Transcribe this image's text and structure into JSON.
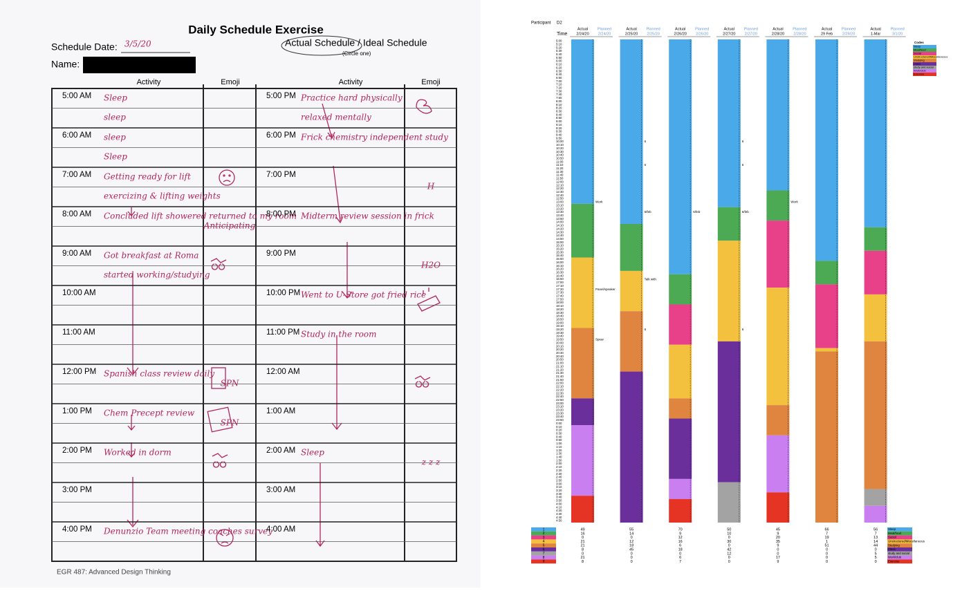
{
  "form": {
    "title": "Daily Schedule Exercise",
    "date_label": "Schedule Date:",
    "date_value": "3/5/20",
    "schedule_type": "Actual Schedule / Ideal Schedule",
    "circle_note": "(Circle one)",
    "name_label": "Name:",
    "headers": [
      "Activity",
      "Emoji",
      "Activity",
      "Emoji"
    ],
    "left": [
      {
        "time": "5:00 AM",
        "lines": [
          "Sleep",
          "sleep"
        ]
      },
      {
        "time": "6:00 AM",
        "lines": [
          "sleep",
          "Sleep"
        ]
      },
      {
        "time": "7:00 AM",
        "lines": [
          "Getting ready for lift",
          "exercizing & lifting weights"
        ]
      },
      {
        "time": "8:00 AM",
        "lines": [
          "Concluded lift showered returned to my room"
        ],
        "emoji": "Anticipating"
      },
      {
        "time": "9:00 AM",
        "lines": [
          "Got breakfast at Roma",
          "started working/studying"
        ]
      },
      {
        "time": "10:00 AM",
        "lines": []
      },
      {
        "time": "11:00 AM",
        "lines": []
      },
      {
        "time": "12:00 PM",
        "lines": [
          "Spanish class review daily"
        ],
        "emoji": "SPN"
      },
      {
        "time": "1:00 PM",
        "lines": [
          "Chem Precept review"
        ],
        "emoji": "SPN"
      },
      {
        "time": "2:00 PM",
        "lines": [
          "Worked in dorm"
        ]
      },
      {
        "time": "3:00 PM",
        "lines": []
      },
      {
        "time": "4:00 PM",
        "lines": [
          "Denunzio Team meeting coaches survey"
        ]
      }
    ],
    "right": [
      {
        "time": "5:00 PM",
        "lines": [
          "Practice hard physically",
          "relaxed mentally"
        ]
      },
      {
        "time": "6:00 PM",
        "lines": [
          "Frick chemistry independent study"
        ]
      },
      {
        "time": "7:00 PM",
        "lines": [],
        "emoji": "H"
      },
      {
        "time": "8:00 PM",
        "lines": [
          "Midterm review session in frick"
        ]
      },
      {
        "time": "9:00 PM",
        "lines": [],
        "emoji": "H2O"
      },
      {
        "time": "10:00 PM",
        "lines": [
          "Went to U-Store got fried rice"
        ]
      },
      {
        "time": "11:00 PM",
        "lines": [
          "Study in the room"
        ]
      },
      {
        "time": "12:00 AM",
        "lines": []
      },
      {
        "time": "1:00 AM",
        "lines": []
      },
      {
        "time": "2:00 AM",
        "lines": [
          "Sleep"
        ],
        "emoji": "z z z"
      },
      {
        "time": "3:00 AM",
        "lines": []
      },
      {
        "time": "4:00 AM",
        "lines": []
      }
    ],
    "footer": "EGR 487: Advanced Design Thinking"
  },
  "sheet": {
    "participant_label": "Participant",
    "participant": "D2",
    "time_label": "Time",
    "codes_title": "Codes",
    "codes": [
      {
        "num": "1",
        "name": "Sleep",
        "color": "#4aa9e9"
      },
      {
        "num": "2",
        "name": "Meal/food",
        "color": "#4caa55"
      },
      {
        "num": "3",
        "name": "Social",
        "color": "#e8418a"
      },
      {
        "num": "4",
        "name": "Unstructured/Miscellaneous",
        "color": "#f4c13f"
      },
      {
        "num": "5",
        "name": "Studying",
        "color": "#df8540"
      },
      {
        "num": "6",
        "name": "Class",
        "color": "#6a2f9b"
      },
      {
        "num": "7",
        "name": "study and social",
        "color": "#a3a3a3"
      },
      {
        "num": "8",
        "name": "Work/club",
        "color": "#c97ff0"
      },
      {
        "num": "9",
        "name": "Exercise",
        "color": "#e63424"
      }
    ],
    "times": [
      "5:00",
      "5:10",
      "5:20",
      "5:30",
      "5:40",
      "5:50",
      "6:00",
      "6:10",
      "6:20",
      "6:30",
      "6:40",
      "6:50",
      "7:00",
      "7:10",
      "7:20",
      "7:30",
      "7:40",
      "7:50",
      "8:00",
      "8:10",
      "8:20",
      "8:30",
      "8:40",
      "8:50",
      "9:00",
      "9:10",
      "9:20",
      "9:30",
      "9:40",
      "9:50",
      "10:00",
      "10:10",
      "10:20",
      "10:30",
      "10:40",
      "10:50",
      "11:00",
      "11:10",
      "11:20",
      "11:30",
      "11:40",
      "11:50",
      "12:00",
      "12:10",
      "12:20",
      "12:30",
      "12:40",
      "12:50",
      "13:00",
      "13:10",
      "13:20",
      "13:30",
      "13:40",
      "13:50",
      "14:00",
      "14:10",
      "14:20",
      "14:30",
      "14:40",
      "14:50",
      "15:00",
      "15:10",
      "15:20",
      "15:30",
      "15:40",
      "15:50",
      "16:00",
      "16:10",
      "16:20",
      "16:30",
      "16:40",
      "16:50",
      "17:00",
      "17:10",
      "17:20",
      "17:30",
      "17:40",
      "17:50",
      "18:00",
      "18:10",
      "18:20",
      "18:30",
      "18:40",
      "18:50",
      "19:00",
      "19:10",
      "19:20",
      "19:30",
      "19:40",
      "19:50",
      "20:00",
      "20:10",
      "20:20",
      "20:30",
      "20:40",
      "20:50",
      "21:00",
      "21:10",
      "21:20",
      "21:30",
      "21:40",
      "21:50",
      "22:00",
      "22:10",
      "22:20",
      "22:30",
      "22:40",
      "22:50",
      "23:00",
      "23:10",
      "23:20",
      "23:30",
      "23:40",
      "23:50",
      "0:00",
      "0:10",
      "0:20",
      "0:30",
      "0:40",
      "0:50",
      "1:00",
      "1:10",
      "1:20",
      "1:30",
      "1:40",
      "1:50",
      "2:00",
      "2:10",
      "2:20",
      "2:30",
      "2:40",
      "2:50",
      "3:00",
      "3:10",
      "3:20",
      "3:30",
      "3:40",
      "3:50",
      "4:00",
      "4:10",
      "4:20",
      "4:30",
      "4:40",
      "4:50"
    ],
    "days": [
      {
        "actual": "Actual",
        "date": "2/24/20",
        "planned": "Planned",
        "planned_date": "2/24/20",
        "counts": [
          49,
          16,
          0,
          21,
          21,
          8,
          0,
          21,
          8
        ],
        "order": [
          0,
          1,
          3,
          4,
          5,
          7,
          8
        ],
        "notes": [
          {
            "text": "Work",
            "time": "13:00"
          },
          {
            "text": "Panel/speaker",
            "time": "17:20"
          },
          {
            "text": "Spear",
            "time": "19:50"
          }
        ]
      },
      {
        "actual": "Actual",
        "date": "2/25/20",
        "planned": "Planned",
        "planned_date": "2/25/20",
        "counts": [
          55,
          14,
          0,
          12,
          18,
          45,
          0,
          0,
          0
        ],
        "order": [
          0,
          1,
          3,
          4,
          5
        ],
        "notes": [
          {
            "text": "6/feb",
            "time": "13:30"
          },
          {
            "text": "Talk with",
            "time": "16:50"
          },
          {
            "text": "6",
            "time": "10:00"
          },
          {
            "text": "6",
            "time": "11:10"
          },
          {
            "text": "6",
            "time": "19:20"
          }
        ]
      },
      {
        "actual": "Actual",
        "date": "2/26/20",
        "planned": "Planned",
        "planned_date": "2/26/20",
        "counts": [
          70,
          9,
          12,
          16,
          6,
          18,
          0,
          6,
          7
        ],
        "order": [
          0,
          1,
          2,
          3,
          4,
          5,
          7,
          8
        ],
        "notes": [
          {
            "text": "6/feb",
            "time": "13:30"
          }
        ]
      },
      {
        "actual": "Actual",
        "date": "2/27/20",
        "planned": "Planned",
        "planned_date": "2/27/20",
        "counts": [
          50,
          10,
          0,
          30,
          0,
          42,
          12,
          0,
          0
        ],
        "order": [
          0,
          1,
          3,
          5,
          6
        ],
        "notes": [
          {
            "text": "6/feb",
            "time": "13:30"
          },
          {
            "text": "6",
            "time": "10:00"
          },
          {
            "text": "6",
            "time": "11:10"
          },
          {
            "text": "6",
            "time": "19:20"
          }
        ]
      },
      {
        "actual": "Actual",
        "date": "2/28/20",
        "planned": "Planned",
        "planned_date": "2/28/20",
        "counts": [
          45,
          9,
          20,
          35,
          9,
          0,
          0,
          17,
          9
        ],
        "order": [
          0,
          1,
          2,
          3,
          4,
          7,
          8
        ],
        "notes": [
          {
            "text": "Work",
            "time": "13:00"
          }
        ]
      },
      {
        "actual": "Actual",
        "date": "29 Feb",
        "planned": "Planned",
        "planned_date": "2/29/20",
        "counts": [
          66,
          7,
          19,
          1,
          51,
          0,
          0,
          0,
          0
        ],
        "order": [
          0,
          1,
          2,
          3,
          4
        ],
        "notes": []
      },
      {
        "actual": "Actual",
        "date": "1-Mar",
        "planned": "Planned",
        "planned_date": "3/1/20",
        "counts": [
          56,
          7,
          13,
          14,
          44,
          0,
          5,
          5,
          0
        ],
        "order": [
          0,
          1,
          2,
          3,
          4,
          6,
          7
        ],
        "notes": []
      }
    ]
  }
}
